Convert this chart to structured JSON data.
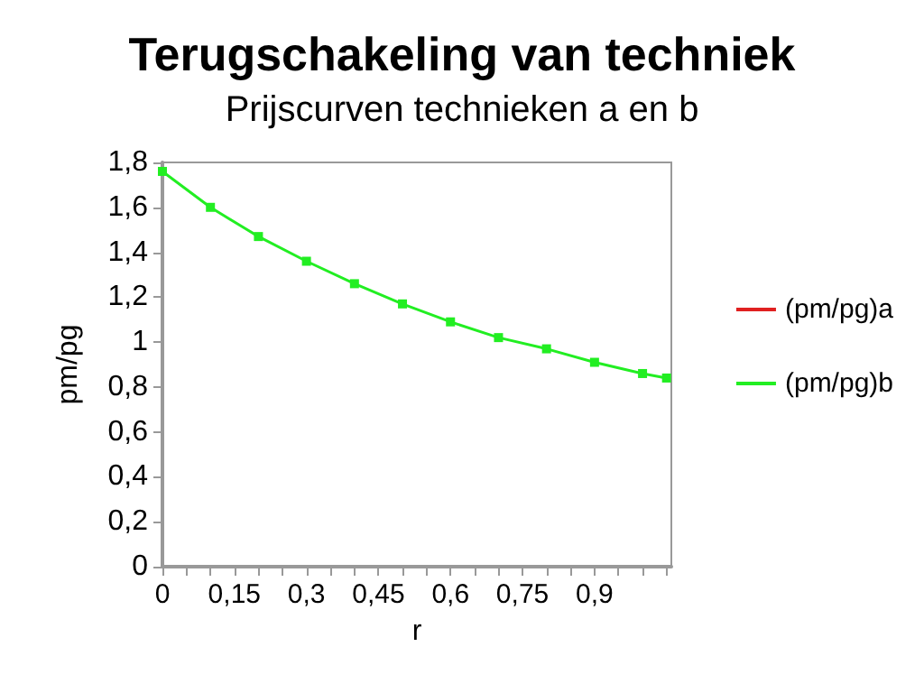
{
  "chart_data": {
    "type": "line",
    "title": "Terugschakeling van techniek",
    "subtitle": "Prijscurven technieken a en b",
    "xlabel": "r",
    "ylabel": "pm/pg",
    "x": [
      0,
      0.1,
      0.2,
      0.3,
      0.4,
      0.5,
      0.6,
      0.7,
      0.8,
      0.9,
      1.0,
      1.05
    ],
    "series": [
      {
        "name": "(pm/pg)a",
        "color": "#e02020",
        "values": [
          null,
          null,
          null,
          null,
          null,
          null,
          null,
          null,
          null,
          null,
          null,
          null
        ]
      },
      {
        "name": "(pm/pg)b",
        "color": "#22ee22",
        "values": [
          1.76,
          1.6,
          1.47,
          1.36,
          1.26,
          1.17,
          1.09,
          1.02,
          0.97,
          0.91,
          0.86,
          0.84
        ]
      }
    ],
    "xlim": [
      0,
      1.06
    ],
    "xticks": [
      {
        "value": 0,
        "label": "0"
      },
      {
        "value": 0.05,
        "label": null
      },
      {
        "value": 0.1,
        "label": null
      },
      {
        "value": 0.15,
        "label": "0,15"
      },
      {
        "value": 0.2,
        "label": null
      },
      {
        "value": 0.25,
        "label": null
      },
      {
        "value": 0.3,
        "label": "0,3"
      },
      {
        "value": 0.35,
        "label": null
      },
      {
        "value": 0.4,
        "label": null
      },
      {
        "value": 0.45,
        "label": "0,45"
      },
      {
        "value": 0.5,
        "label": null
      },
      {
        "value": 0.55,
        "label": null
      },
      {
        "value": 0.6,
        "label": "0,6"
      },
      {
        "value": 0.65,
        "label": null
      },
      {
        "value": 0.7,
        "label": null
      },
      {
        "value": 0.75,
        "label": "0,75"
      },
      {
        "value": 0.8,
        "label": null
      },
      {
        "value": 0.85,
        "label": null
      },
      {
        "value": 0.9,
        "label": "0,9"
      },
      {
        "value": 0.95,
        "label": null
      },
      {
        "value": 1.0,
        "label": null
      },
      {
        "value": 1.05,
        "label": null
      }
    ],
    "ylim": [
      0,
      1.8
    ],
    "yticks": [
      {
        "value": 0,
        "label": "0"
      },
      {
        "value": 0.2,
        "label": "0,2"
      },
      {
        "value": 0.4,
        "label": "0,4"
      },
      {
        "value": 0.6,
        "label": "0,6"
      },
      {
        "value": 0.8,
        "label": "0,8"
      },
      {
        "value": 1,
        "label": "1"
      },
      {
        "value": 1.2,
        "label": "1,2"
      },
      {
        "value": 1.4,
        "label": "1,4"
      },
      {
        "value": 1.6,
        "label": "1,6"
      },
      {
        "value": 1.8,
        "label": "1,8"
      }
    ],
    "grid": false,
    "legend": "right",
    "marker": "square",
    "line_style": "solid"
  }
}
